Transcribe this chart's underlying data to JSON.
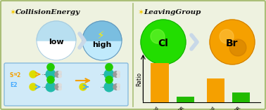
{
  "bg_color": "#eef2e0",
  "border_color": "#aabf78",
  "left_title_plus": "✶",
  "left_title_text": "CollisionEnergy",
  "right_title_plus": "✶",
  "right_title_text": "LeavingGroup",
  "title_color_plus": "#f5c800",
  "title_color_text": "#111111",
  "low_label": "low",
  "high_label": "high",
  "cl_color": "#22dd00",
  "cl_dark": "#119900",
  "br_color": "#f5a000",
  "br_dark": "#c07000",
  "cl_label": "Cl",
  "br_label": "Br",
  "chevron_color": "#c8d8e8",
  "bar_values": [
    0.85,
    0.12,
    0.52,
    0.22
  ],
  "bar_colors": [
    "#f5a000",
    "#22bb00",
    "#f5a000",
    "#22bb00"
  ],
  "bar_labels": [
    "Ind",
    "DR",
    "Ind",
    "DR"
  ],
  "ylabel": "Ratio",
  "sn2_color": "#f5a000",
  "e2_color": "#44aaff",
  "inner_box_color": "#d0eaf8",
  "inner_box_border": "#88bbdd",
  "lightning_color": "#ffee00",
  "low_top_color": "#ffffff",
  "low_bot_color": "#b8dff0",
  "high_top_color": "#c0eafc",
  "high_bot_color": "#7abee0",
  "teal_color": "#22bbaa",
  "green_mol_color": "#22cc00",
  "yellow_color": "#dddd00",
  "gray_color": "#999999",
  "orange_arrow": "#f5a000",
  "blue_arrow": "#44aaff"
}
